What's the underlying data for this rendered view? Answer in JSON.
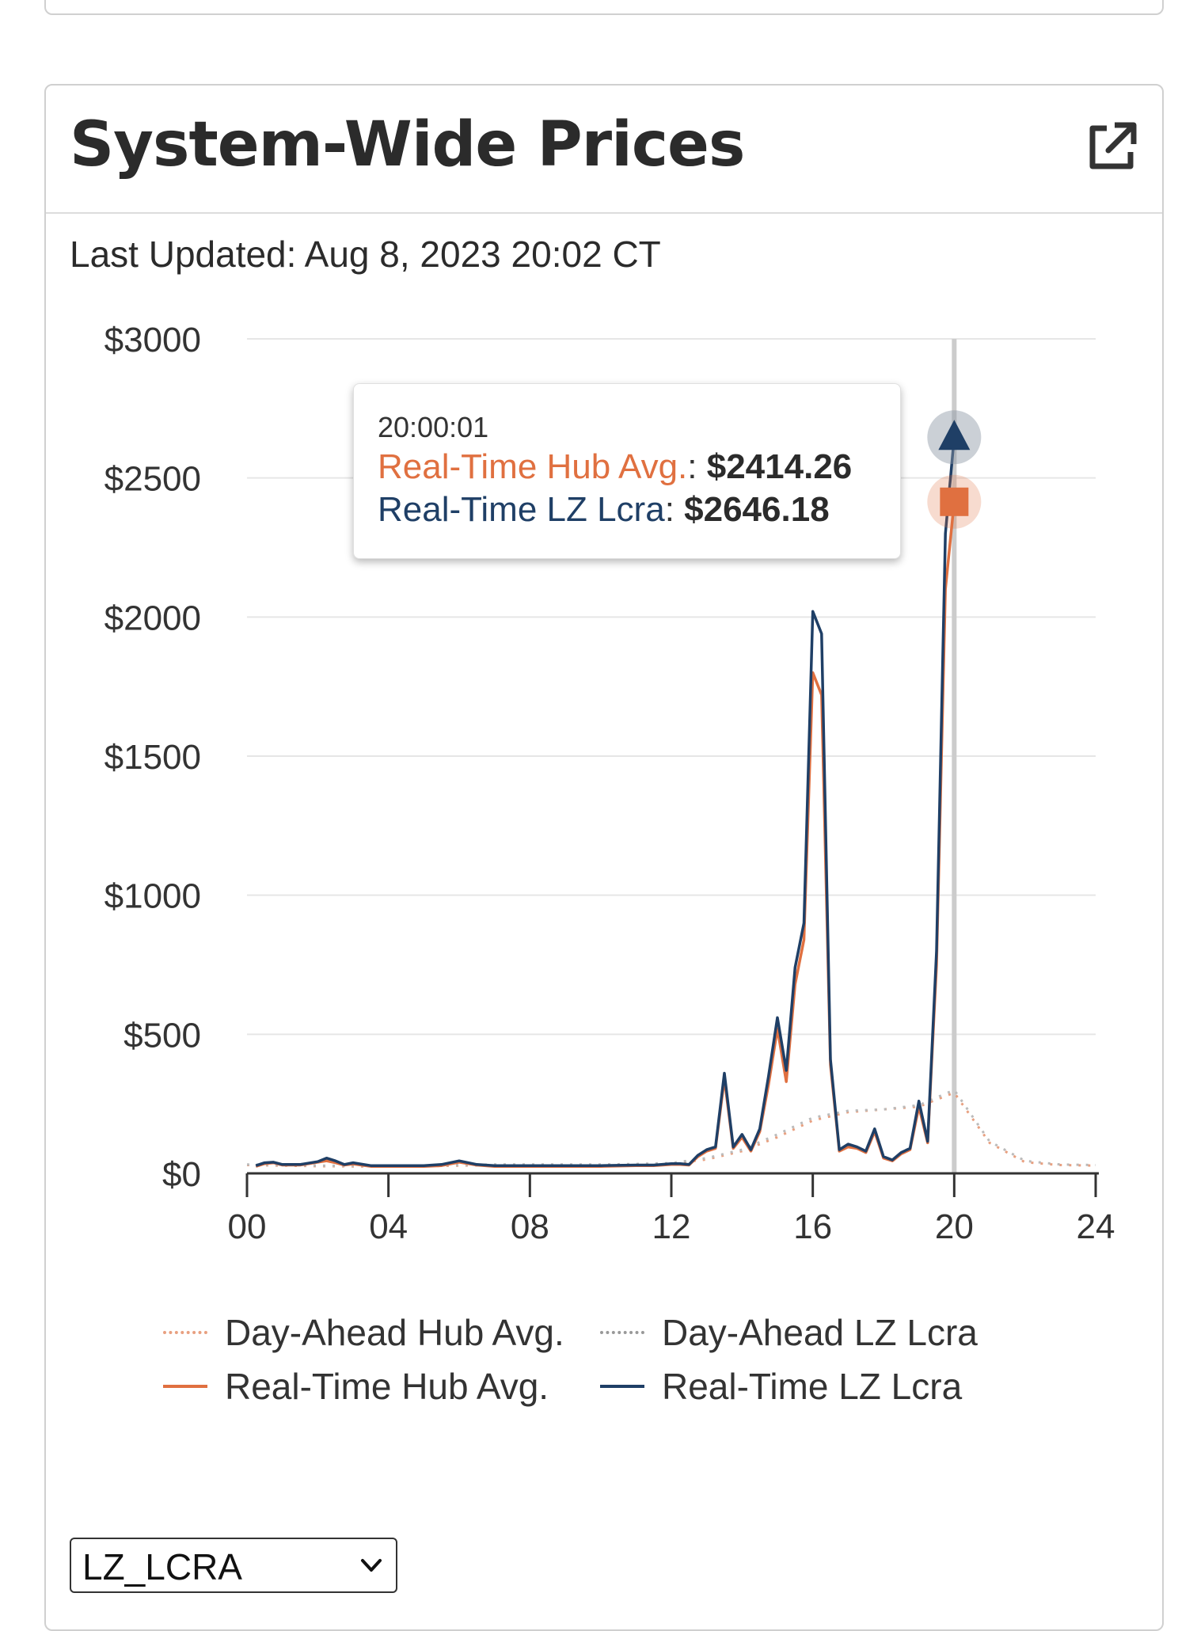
{
  "card": {
    "title": "System-Wide Prices",
    "last_updated": "Last Updated: Aug 8, 2023 20:02 CT",
    "open_icon": "external-link-icon"
  },
  "tooltip": {
    "time": "20:00:01",
    "rows": [
      {
        "label": "Real-Time Hub Avg.",
        "value": "$2414.26",
        "color": "#e07040"
      },
      {
        "label": "Real-Time LZ Lcra",
        "value": "$2646.18",
        "color": "#1f3f66"
      }
    ]
  },
  "select": {
    "value": "LZ_LCRA",
    "icon": "chevron-down-icon"
  },
  "chart_data": {
    "type": "line",
    "title": "System-Wide Prices",
    "x_label": "",
    "y_label": "",
    "x_ticks": [
      "00",
      "04",
      "08",
      "12",
      "16",
      "20",
      "24"
    ],
    "y_ticks": [
      "$0",
      "$500",
      "$1000",
      "$1500",
      "$2000",
      "$2500",
      "$3000"
    ],
    "xlim": [
      0,
      24
    ],
    "ylim": [
      0,
      3000
    ],
    "grid": true,
    "legend_position": "bottom",
    "crosshair_hour": 20,
    "series": [
      {
        "name": "Day-Ahead Hub Avg.",
        "style": "dotted",
        "color": "#e8a080",
        "x": [
          0,
          1,
          2,
          3,
          4,
          5,
          6,
          7,
          8,
          9,
          10,
          11,
          12,
          13,
          14,
          15,
          16,
          17,
          18,
          19,
          20,
          21,
          22,
          23,
          24
        ],
        "values": [
          30,
          28,
          26,
          25,
          25,
          26,
          28,
          30,
          30,
          30,
          30,
          32,
          35,
          50,
          80,
          130,
          190,
          220,
          230,
          240,
          290,
          110,
          40,
          30,
          28
        ]
      },
      {
        "name": "Day-Ahead LZ Lcra",
        "style": "dotted",
        "color": "#bbbbbb",
        "x": [
          0,
          1,
          2,
          3,
          4,
          5,
          6,
          7,
          8,
          9,
          10,
          11,
          12,
          13,
          14,
          15,
          16,
          17,
          18,
          19,
          20,
          21,
          22,
          23,
          24
        ],
        "values": [
          32,
          30,
          28,
          27,
          27,
          28,
          30,
          32,
          32,
          32,
          32,
          34,
          37,
          55,
          85,
          140,
          200,
          225,
          230,
          245,
          300,
          115,
          45,
          32,
          30
        ]
      },
      {
        "name": "Real-Time Hub Avg.",
        "style": "solid",
        "color": "#e07040",
        "x": [
          0.25,
          0.5,
          0.75,
          1,
          1.5,
          2,
          2.25,
          2.5,
          2.75,
          3,
          3.5,
          4,
          4.5,
          5,
          5.5,
          6,
          6.5,
          7,
          8,
          9,
          10,
          11,
          11.5,
          12,
          12.25,
          12.5,
          12.75,
          13,
          13.25,
          13.5,
          13.75,
          14,
          14.25,
          14.5,
          14.75,
          15,
          15.25,
          15.5,
          15.75,
          16,
          16.25,
          16.5,
          16.75,
          17,
          17.25,
          17.5,
          17.75,
          18,
          18.25,
          18.5,
          18.75,
          19,
          19.25,
          19.5,
          19.75,
          20
        ],
        "values": [
          25,
          35,
          38,
          30,
          30,
          40,
          45,
          38,
          30,
          34,
          25,
          25,
          25,
          25,
          28,
          40,
          30,
          25,
          25,
          25,
          25,
          28,
          28,
          32,
          32,
          30,
          60,
          80,
          90,
          340,
          90,
          130,
          80,
          150,
          320,
          520,
          330,
          680,
          840,
          1800,
          1720,
          390,
          80,
          95,
          90,
          75,
          150,
          55,
          45,
          70,
          85,
          240,
          110,
          750,
          2100,
          2414.26
        ]
      },
      {
        "name": "Real-Time LZ Lcra",
        "style": "solid",
        "color": "#1f3f66",
        "x": [
          0.25,
          0.5,
          0.75,
          1,
          1.5,
          2,
          2.25,
          2.5,
          2.75,
          3,
          3.5,
          4,
          4.5,
          5,
          5.5,
          6,
          6.5,
          7,
          8,
          9,
          10,
          11,
          11.5,
          12,
          12.25,
          12.5,
          12.75,
          13,
          13.25,
          13.5,
          13.75,
          14,
          14.25,
          14.5,
          14.75,
          15,
          15.25,
          15.5,
          15.75,
          16,
          16.25,
          16.5,
          16.75,
          17,
          17.25,
          17.5,
          17.75,
          18,
          18.25,
          18.5,
          18.75,
          19,
          19.25,
          19.5,
          19.75,
          20
        ],
        "values": [
          28,
          38,
          40,
          32,
          32,
          42,
          55,
          45,
          32,
          38,
          28,
          28,
          28,
          28,
          32,
          45,
          32,
          28,
          28,
          28,
          28,
          30,
          30,
          35,
          35,
          32,
          65,
          85,
          95,
          360,
          95,
          140,
          85,
          160,
          350,
          560,
          370,
          740,
          900,
          2020,
          1940,
          410,
          85,
          105,
          95,
          80,
          160,
          60,
          48,
          75,
          90,
          260,
          115,
          800,
          2300,
          2646.18
        ]
      }
    ]
  }
}
